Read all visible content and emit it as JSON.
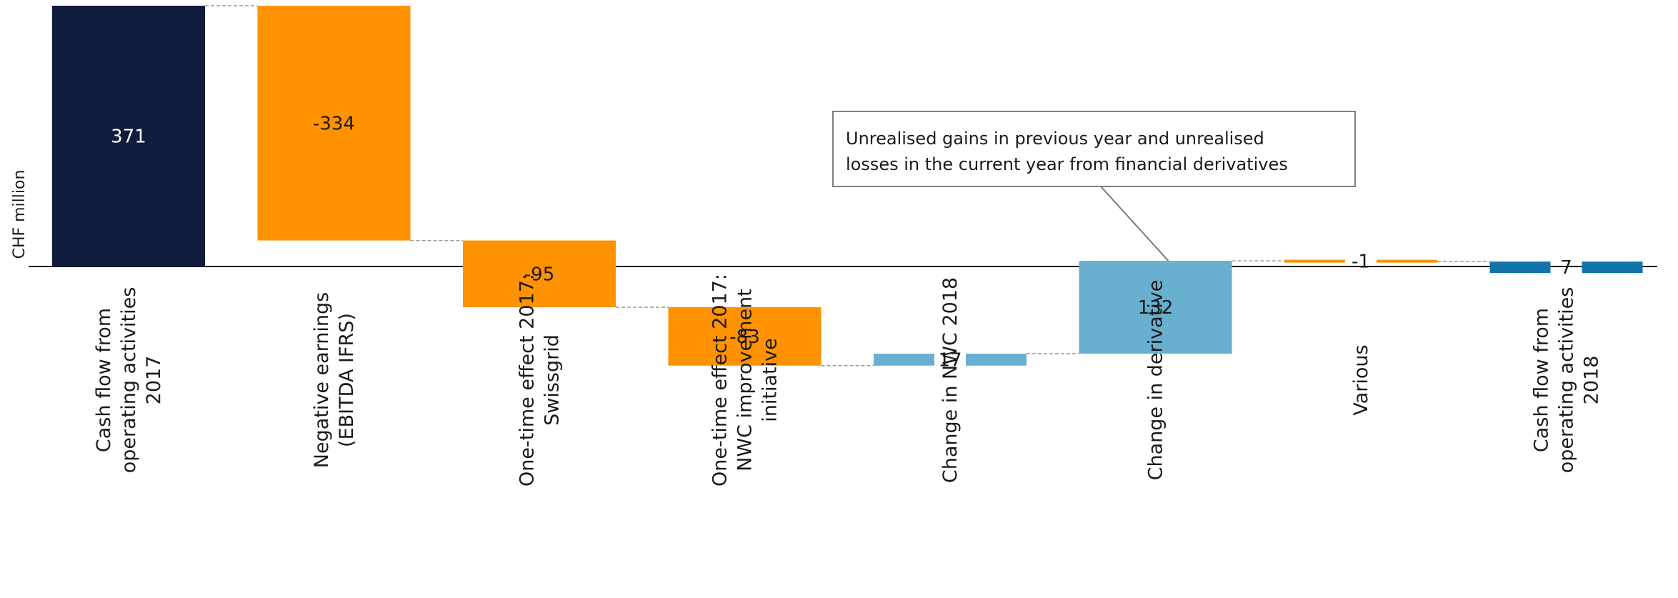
{
  "chart_data": {
    "type": "waterfall",
    "ylabel": "CHF million",
    "categories": [
      [
        "Cash flow from",
        "operating activities",
        "2017"
      ],
      [
        "Negative earnings",
        "(EBITDA IFRS)"
      ],
      [
        "One-time effect 2017:",
        "Swissgrid"
      ],
      [
        "One-time effect 2017:",
        "NWC improvement",
        "initiative"
      ],
      [
        "Change in NWC 2018"
      ],
      [
        "Change in derivative"
      ],
      [
        "Various"
      ],
      [
        "Cash flow from",
        "operating activities",
        "2018"
      ]
    ],
    "steps": [
      {
        "kind": "total",
        "value": 371,
        "label": "371",
        "color": "#101c3c"
      },
      {
        "kind": "delta",
        "value": -334,
        "label": "-334",
        "color": "#ff9200"
      },
      {
        "kind": "delta",
        "value": -95,
        "label": "-95",
        "color": "#ff9200"
      },
      {
        "kind": "delta",
        "value": -83,
        "label": "-83",
        "color": "#ff9200"
      },
      {
        "kind": "delta",
        "value": 17,
        "label": "17",
        "color": "#68afd0"
      },
      {
        "kind": "delta",
        "value": 132,
        "label": "132",
        "color": "#68afd0"
      },
      {
        "kind": "delta",
        "value": -1,
        "label": "-1",
        "color": "#ff9200"
      },
      {
        "kind": "total",
        "value": 7,
        "label": "7",
        "color": "#1175ab"
      }
    ],
    "annotation": {
      "lines": [
        "Unrealised gains in previous year and unrealised",
        "losses in the current year from financial derivatives"
      ],
      "target_index": 5
    }
  }
}
